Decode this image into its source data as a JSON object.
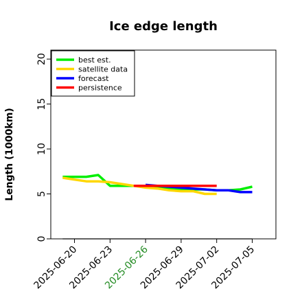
{
  "chart_data": {
    "type": "line",
    "title": "Ice edge length",
    "xlabel": "",
    "ylabel": "Length (1000km)",
    "ylim": [
      0,
      21
    ],
    "xlim": [
      "2025-06-18",
      "2025-07-07"
    ],
    "y_ticks": [
      "0",
      "5",
      "10",
      "15",
      "20"
    ],
    "x_ticks": [
      {
        "label": "2025-06-20",
        "color": "#000000"
      },
      {
        "label": "2025-06-23",
        "color": "#000000"
      },
      {
        "label": "2025-06-26",
        "color": "#228B22"
      },
      {
        "label": "2025-06-29",
        "color": "#000000"
      },
      {
        "label": "2025-07-02",
        "color": "#000000"
      },
      {
        "label": "2025-07-05",
        "color": "#000000"
      }
    ],
    "legend_position": "top-left",
    "grid": false,
    "baseline": {
      "value": 0,
      "color": "#808080"
    },
    "series": [
      {
        "name": "best est.",
        "color": "#00ee00",
        "x": [
          "2025-06-19",
          "2025-06-20",
          "2025-06-21",
          "2025-06-22",
          "2025-06-23",
          "2025-06-24",
          "2025-06-25",
          "2025-06-26",
          "2025-06-27",
          "2025-06-28",
          "2025-06-29",
          "2025-06-30",
          "2025-07-01",
          "2025-07-02",
          "2025-07-03",
          "2025-07-04",
          "2025-07-05"
        ],
        "y": [
          6.9,
          6.9,
          6.9,
          7.1,
          5.9,
          5.9,
          5.9,
          5.9,
          5.8,
          5.6,
          5.5,
          5.5,
          5.5,
          5.4,
          5.4,
          5.5,
          5.8
        ]
      },
      {
        "name": "satellite data",
        "color": "#ffd700",
        "x": [
          "2025-06-19",
          "2025-06-20",
          "2025-06-21",
          "2025-06-22",
          "2025-06-23",
          "2025-06-24",
          "2025-06-25",
          "2025-06-26",
          "2025-06-27",
          "2025-06-28",
          "2025-06-29",
          "2025-06-30",
          "2025-07-01",
          "2025-07-02"
        ],
        "y": [
          6.8,
          6.6,
          6.4,
          6.4,
          6.3,
          6.1,
          5.9,
          5.7,
          5.6,
          5.4,
          5.3,
          5.3,
          5.0,
          5.0
        ]
      },
      {
        "name": "forecast",
        "color": "#0000ff",
        "x": [
          "2025-06-26",
          "2025-06-27",
          "2025-06-28",
          "2025-06-29",
          "2025-06-30",
          "2025-07-01",
          "2025-07-02",
          "2025-07-03",
          "2025-07-04",
          "2025-07-05"
        ],
        "y": [
          6.0,
          5.9,
          5.8,
          5.7,
          5.6,
          5.5,
          5.4,
          5.4,
          5.2,
          5.2
        ]
      },
      {
        "name": "persistence",
        "color": "#ff0000",
        "x": [
          "2025-06-25",
          "2025-07-02"
        ],
        "y": [
          5.9,
          5.9
        ]
      }
    ]
  }
}
